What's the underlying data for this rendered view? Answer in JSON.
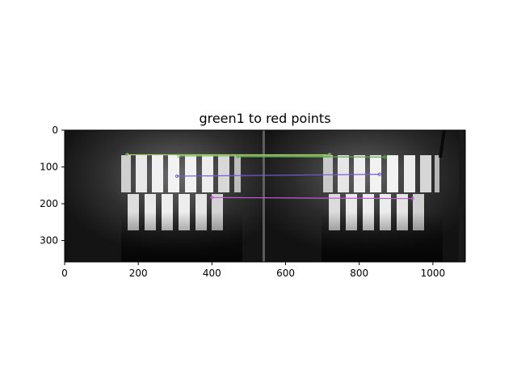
{
  "figure": {
    "title": "green1 to red points",
    "image_width": 1088,
    "image_height": 358
  },
  "axes": {
    "x_ticks": [
      0,
      200,
      400,
      600,
      800,
      1000
    ],
    "y_ticks": [
      0,
      100,
      200,
      300
    ],
    "xlim": [
      0,
      1088
    ],
    "ylim_inverted": [
      358,
      0
    ]
  },
  "matches": [
    {
      "x1": 170,
      "y1": 67,
      "x2": 720,
      "y2": 67,
      "color": "#a8d07a"
    },
    {
      "x1": 310,
      "y1": 70,
      "x2": 715,
      "y2": 70,
      "color": "#7fbf5a"
    },
    {
      "x1": 470,
      "y1": 72,
      "x2": 870,
      "y2": 73,
      "color": "#5fa84a"
    },
    {
      "x1": 305,
      "y1": 125,
      "x2": 855,
      "y2": 120,
      "color": "#7a5ad8"
    },
    {
      "x1": 400,
      "y1": 183,
      "x2": 945,
      "y2": 186,
      "color": "#c05ad0"
    }
  ]
}
